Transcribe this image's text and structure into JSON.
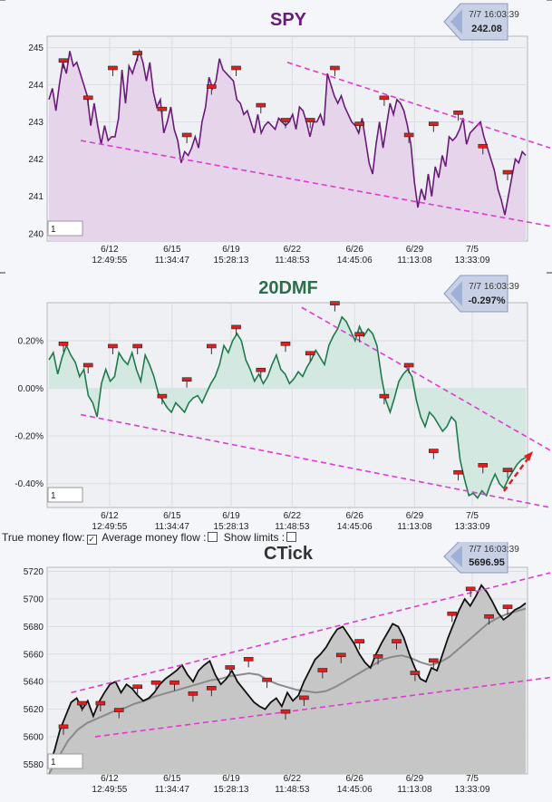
{
  "chart_data": [
    {
      "type": "line",
      "title": "SPY",
      "quote": {
        "time": "7/7 16:03:39",
        "value": "242.08"
      },
      "input_value": "1",
      "yticks": [
        "245",
        "244",
        "243",
        "242",
        "241",
        "240"
      ],
      "ylim": [
        239.8,
        245.3
      ],
      "x_ticks": [
        {
          "date": "6/12",
          "time": "12:49:55"
        },
        {
          "date": "6/15",
          "time": "11:34:47"
        },
        {
          "date": "6/19",
          "time": "15:28:13"
        },
        {
          "date": "6/22",
          "time": "11:48:53"
        },
        {
          "date": "6/26",
          "time": "14:45:06"
        },
        {
          "date": "6/29",
          "time": "11:13:08"
        },
        {
          "date": "7/5",
          "time": "13:33:09"
        }
      ],
      "series": [
        {
          "values": [
            243.6,
            243.9,
            243.3,
            244.0,
            244.6,
            244.3,
            244.9,
            244.5,
            244.6,
            244.3,
            244.0,
            243.7,
            242.9,
            243.5,
            242.9,
            242.4,
            242.9,
            242.5,
            242.6,
            242.6,
            243.1,
            244.4,
            243.5,
            244.5,
            244.3,
            244.6,
            244.9,
            244.6,
            244.1,
            244.6,
            243.8,
            243.4,
            243.6,
            242.7,
            243.0,
            243.4,
            242.8,
            242.5,
            241.9,
            242.2,
            242.1,
            242.3,
            242.6,
            242.3,
            243.0,
            243.4,
            244.2,
            243.9,
            244.1,
            244.7,
            244.4,
            244.3,
            244.2,
            244.1,
            243.6,
            243.5,
            243.2,
            243.3,
            243.0,
            242.7,
            243.2,
            242.7,
            242.9,
            243.0,
            242.9,
            242.8,
            243.1,
            243.0,
            242.9,
            243.0,
            243.2,
            242.8,
            243.4,
            243.3,
            243.0,
            242.6,
            243.0,
            243.0,
            243.2,
            242.9,
            244.3,
            244.0,
            243.7,
            243.5,
            243.7,
            243.4,
            243.2,
            243.0,
            242.9,
            242.7,
            243.1,
            242.5,
            241.9,
            241.6,
            242.4,
            243.0,
            242.3,
            242.9,
            243.5,
            243.2,
            243.6,
            243.5,
            243.3,
            242.9,
            242.4,
            241.4,
            240.7,
            241.2,
            240.9,
            241.6,
            241.0,
            241.8,
            241.5,
            242.1,
            241.8,
            242.6,
            242.5,
            242.6,
            242.8,
            243.1,
            242.4,
            242.7,
            242.8,
            242.9,
            243.0,
            242.6,
            242.3,
            242.0,
            241.7,
            241.2,
            240.9,
            240.5,
            241.0,
            241.5,
            242.0,
            241.9,
            242.2,
            242.1
          ]
        },
        {
          "name": "trend-upper",
          "values": [
            [
              0.5,
              244.6
            ],
            [
              1.0,
              242.3
            ]
          ]
        },
        {
          "name": "trend-lower",
          "values": [
            [
              0.07,
              242.5
            ],
            [
              1.0,
              240.2
            ]
          ]
        }
      ],
      "pins": [
        244.6,
        243.6,
        244.4,
        244.8,
        243.3,
        242.6,
        243.9,
        244.4,
        243.4,
        243.0,
        243.0,
        244.4,
        242.9,
        243.6,
        242.6,
        242.9,
        243.2,
        242.3,
        241.6
      ]
    },
    {
      "type": "area",
      "title": "20DMF",
      "quote": {
        "time": "7/7 16:03:39",
        "value": "-0.297%"
      },
      "input_value": "1",
      "yticks": [
        "0.20%",
        "0.00%",
        "-0.20%",
        "-0.40%"
      ],
      "ylim": [
        -0.5,
        0.36
      ],
      "x_ticks": [
        {
          "date": "6/12",
          "time": "12:49:55"
        },
        {
          "date": "6/15",
          "time": "11:34:47"
        },
        {
          "date": "6/19",
          "time": "15:28:13"
        },
        {
          "date": "6/22",
          "time": "11:48:53"
        },
        {
          "date": "6/26",
          "time": "14:45:06"
        },
        {
          "date": "6/29",
          "time": "11:13:08"
        },
        {
          "date": "7/5",
          "time": "13:33:09"
        }
      ],
      "series": [
        {
          "values": [
            0.12,
            0.15,
            0.06,
            0.13,
            0.18,
            0.14,
            0.11,
            0.05,
            0.08,
            -0.03,
            -0.06,
            -0.12,
            0.02,
            0.08,
            0.03,
            0.05,
            0.15,
            0.12,
            0.1,
            0.15,
            0.08,
            0.03,
            0.14,
            0.1,
            0.05,
            -0.02,
            -0.05,
            -0.08,
            -0.1,
            -0.06,
            -0.08,
            -0.1,
            -0.06,
            -0.04,
            -0.03,
            -0.06,
            -0.02,
            0.02,
            0.05,
            0.1,
            0.18,
            0.15,
            0.2,
            0.23,
            0.2,
            0.12,
            0.08,
            0.03,
            0.06,
            0.02,
            0.05,
            0.1,
            0.14,
            0.08,
            0.06,
            0.02,
            0.04,
            0.07,
            0.05,
            0.09,
            0.12,
            0.16,
            0.13,
            0.1,
            0.18,
            0.22,
            0.25,
            0.3,
            0.28,
            0.24,
            0.2,
            0.26,
            0.22,
            0.25,
            0.23,
            0.18,
            0.05,
            -0.05,
            -0.1,
            -0.04,
            0.03,
            0.06,
            0.08,
            0.05,
            -0.05,
            -0.12,
            -0.16,
            -0.1,
            -0.12,
            -0.15,
            -0.18,
            -0.16,
            -0.12,
            -0.14,
            -0.3,
            -0.38,
            -0.45,
            -0.44,
            -0.46,
            -0.43,
            -0.45,
            -0.4,
            -0.36,
            -0.4,
            -0.42,
            -0.38,
            -0.35,
            -0.32,
            -0.3,
            -0.29
          ]
        },
        {
          "name": "trend-upper",
          "values": [
            [
              0.53,
              0.34
            ],
            [
              1.0,
              -0.26
            ]
          ]
        },
        {
          "name": "trend-lower",
          "values": [
            [
              0.07,
              -0.11
            ],
            [
              1.0,
              -0.5
            ]
          ]
        }
      ],
      "pins": [
        0.18,
        0.09,
        0.17,
        0.17,
        -0.04,
        0.03,
        0.17,
        0.25,
        0.07,
        0.18,
        0.14,
        0.35,
        0.22,
        -0.04,
        0.09,
        -0.27,
        -0.36,
        -0.33,
        -0.35
      ]
    },
    {
      "type": "area",
      "title": "CTick",
      "quote": {
        "time": "7/7 16:03:39",
        "value": "5696.95"
      },
      "input_value": "1",
      "yticks": [
        "5720",
        "5700",
        "5680",
        "5660",
        "5640",
        "5620",
        "5600",
        "5580"
      ],
      "ylim": [
        5573,
        5723
      ],
      "x_ticks": [
        {
          "date": "6/12",
          "time": "12:49:55"
        },
        {
          "date": "6/15",
          "time": "11:34:47"
        },
        {
          "date": "6/19",
          "time": "15:28:13"
        },
        {
          "date": "6/22",
          "time": "11:48:53"
        },
        {
          "date": "6/26",
          "time": "14:45:06"
        },
        {
          "date": "6/29",
          "time": "11:13:08"
        },
        {
          "date": "7/5",
          "time": "13:33:09"
        }
      ],
      "series": [
        {
          "values": [
            5578,
            5590,
            5605,
            5615,
            5625,
            5628,
            5620,
            5626,
            5615,
            5625,
            5632,
            5638,
            5640,
            5632,
            5638,
            5635,
            5630,
            5626,
            5628,
            5632,
            5638,
            5642,
            5645,
            5648,
            5652,
            5645,
            5640,
            5648,
            5652,
            5655,
            5645,
            5638,
            5642,
            5648,
            5640,
            5635,
            5630,
            5625,
            5622,
            5620,
            5625,
            5628,
            5622,
            5632,
            5626,
            5630,
            5640,
            5648,
            5656,
            5660,
            5665,
            5672,
            5678,
            5680,
            5674,
            5668,
            5660,
            5654,
            5650,
            5660,
            5668,
            5675,
            5682,
            5680,
            5672,
            5660,
            5650,
            5642,
            5640,
            5650,
            5648,
            5660,
            5672,
            5682,
            5692,
            5700,
            5695,
            5702,
            5710,
            5705,
            5698,
            5690,
            5685,
            5688,
            5692,
            5694,
            5697
          ]
        },
        {
          "name": "moving-average",
          "values": [
            5573,
            5585,
            5597,
            5605,
            5610,
            5613,
            5616,
            5619,
            5621,
            5624,
            5626,
            5629,
            5631,
            5633,
            5635,
            5637,
            5639,
            5641,
            5642,
            5644,
            5645,
            5646,
            5645,
            5641,
            5638,
            5636,
            5634,
            5633,
            5632,
            5633,
            5636,
            5640,
            5644,
            5648,
            5652,
            5656,
            5658,
            5659,
            5657,
            5654,
            5652,
            5654,
            5658,
            5664,
            5670,
            5676,
            5682,
            5686,
            5689,
            5691,
            5693
          ]
        },
        {
          "name": "trend-upper",
          "values": [
            [
              0.05,
              5632
            ],
            [
              1.0,
              5719
            ]
          ]
        },
        {
          "name": "trend-lower",
          "values": [
            [
              0.1,
              5600
            ],
            [
              1.0,
              5643
            ]
          ]
        }
      ],
      "pins": [
        5606,
        5623,
        5623,
        5618,
        5635,
        5638,
        5638,
        5630,
        5634,
        5649,
        5655,
        5640,
        5617,
        5627,
        5647,
        5658,
        5668,
        5657,
        5668,
        5645,
        5654,
        5688,
        5706,
        5686,
        5693
      ]
    }
  ],
  "options": {
    "true_money_flow_label": "True money flow:",
    "average_money_flow_label": "Average money flow :",
    "show_limits_label": "Show limits :"
  },
  "colors": {
    "spy_line": "#6a1a7a",
    "spy_fill": "#e6d4ea",
    "dmf_line": "#1f7a4c",
    "dmf_fill": "#d3e8e1",
    "ctick_line": "#111111",
    "ctick_fill": "#c6c6c6",
    "ctick_ma": "#8a8a8a",
    "trend": "#e23ad0",
    "pin_flag": "#e02020",
    "spy_title": "#6a1a7a",
    "dmf_title": "#2b6e4a",
    "ctick_title": "#333333"
  }
}
